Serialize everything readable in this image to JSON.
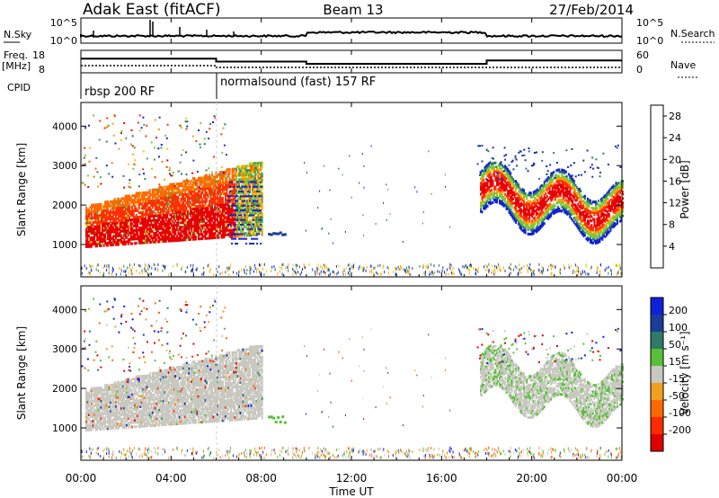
{
  "header": {
    "station": "Adak East (fitACF)",
    "beam": "Beam 13",
    "date": "27/Feb/2014"
  },
  "ops_panels": {
    "nsky_label": "N.Sky",
    "nsky_ticks": [
      "10^5",
      "10^0"
    ],
    "nsearch_label": "N.Search",
    "nsearch_ticks": [
      "10^5",
      "10^0"
    ],
    "freq_label_1": "Freq.",
    "freq_label_2": "[MHz]",
    "freq_ticks": [
      "18",
      "8"
    ],
    "nave_label": "Nave",
    "nave_ticks": [
      "60",
      "0"
    ],
    "cpid_label": "CPID",
    "cpid_segments": [
      {
        "name": "rbsp 200 RF",
        "start_h": 0
      },
      {
        "name": "normalsound (fast) 157 RF",
        "start_h": 6
      }
    ],
    "freq_steps": [
      {
        "t0": 0,
        "t1": 6,
        "f": 14.5
      },
      {
        "t0": 6,
        "t1": 10,
        "f": 13.0
      },
      {
        "t0": 10,
        "t1": 18,
        "f": 11.8
      },
      {
        "t0": 18,
        "t1": 24,
        "f": 13.6
      }
    ]
  },
  "power_panel": {
    "ylabel": "Slant Range [km]",
    "yticks": [
      "1000",
      "2000",
      "3000",
      "4000"
    ],
    "colorbar_label": "Power [dB]",
    "colorbar_ticks": [
      "4",
      "8",
      "12",
      "16",
      "20",
      "24",
      "28"
    ],
    "colors": [
      "#1020d8",
      "#1a3d98",
      "#2f7a68",
      "#48a050",
      "#7ec83c",
      "#f0c800",
      "#ffa000",
      "#ff6a00",
      "#ff3000",
      "#e80000"
    ]
  },
  "velocity_panel": {
    "ylabel": "Slant Range [km]",
    "yticks": [
      "1000",
      "2000",
      "3000",
      "4000"
    ],
    "colorbar_label": "Velocity [m s⁻¹]",
    "colorbar_ticks": [
      "200",
      "100",
      "50",
      "15",
      "-15",
      "-50",
      "-100",
      "-200"
    ],
    "colors": [
      "#1020d8",
      "#1a3d98",
      "#2f7a68",
      "#58c038",
      "#c8c8c0",
      "#f0a020",
      "#ff6a00",
      "#ff2a00",
      "#e00000"
    ]
  },
  "x_axis": {
    "label": "Time UT",
    "ticks": [
      "00:00",
      "04:00",
      "08:00",
      "12:00",
      "16:00",
      "20:00",
      "00:00"
    ]
  },
  "chart_data": {
    "type": "heatmap",
    "title": "Adak East (fitACF) Beam 13 27/Feb/2014",
    "xlabel": "Time UT",
    "ylabel": "Slant Range [km]",
    "xlim_hours": [
      0,
      24
    ],
    "ylim_km": [
      180,
      4600
    ],
    "power_range_db": [
      0,
      30
    ],
    "velocity_range_ms": [
      -250,
      250
    ],
    "features": [
      {
        "t_start_h": 0.2,
        "t_end_h": 8.0,
        "range_km": [
          900,
          3100
        ],
        "power_db": 24,
        "velocity_ms": 0
      },
      {
        "t_start_h": 5.5,
        "t_end_h": 8.0,
        "range_km": [
          1000,
          2800
        ],
        "power_db": 18,
        "velocity_ms": 5
      },
      {
        "t_start_h": 17.7,
        "t_end_h": 24.0,
        "range_km": [
          1100,
          3000
        ],
        "power_db": 22,
        "velocity_ms": 20
      },
      {
        "t_start_h": 8.5,
        "t_end_h": 9.0,
        "range_km": [
          1100,
          1300
        ],
        "power_db": 6,
        "velocity_ms": 30
      },
      {
        "t_start_h": 0.0,
        "t_end_h": 24.0,
        "range_km": [
          180,
          450
        ],
        "power_db": 6,
        "velocity_ms": -30
      }
    ]
  }
}
